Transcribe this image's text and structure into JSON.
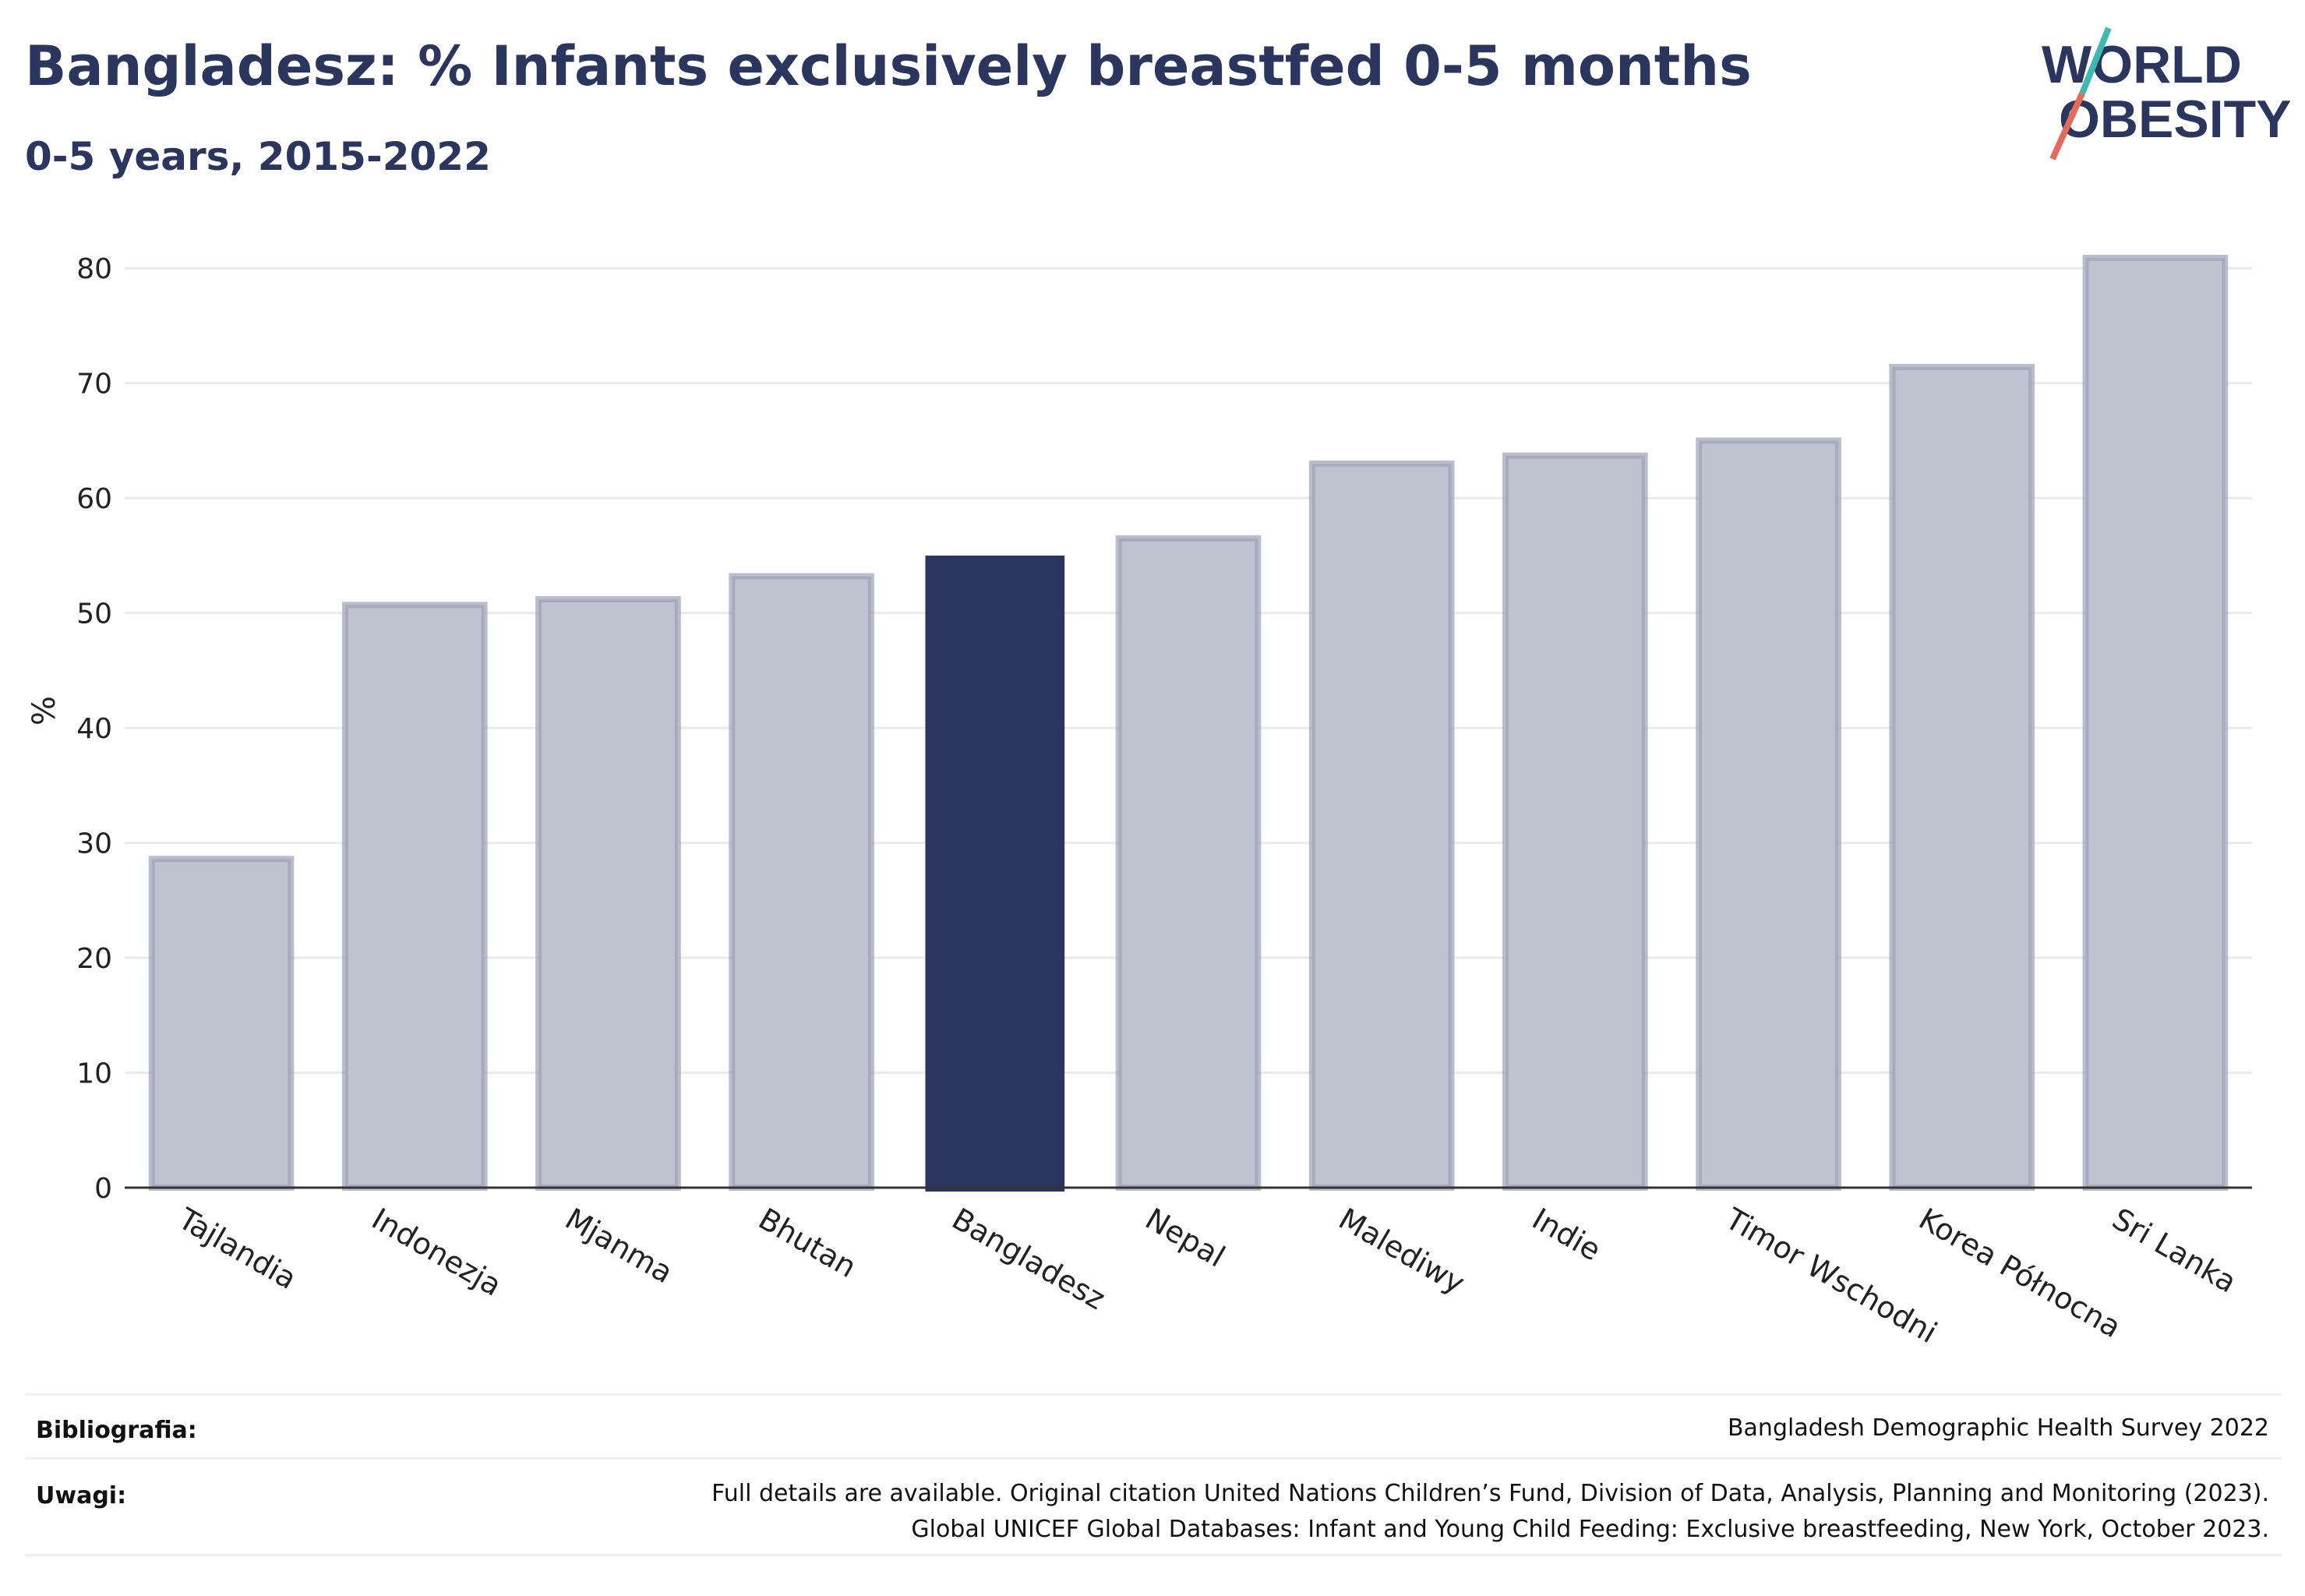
{
  "header": {
    "title": "Bangladesz: % Infants exclusively breastfed 0-5 months",
    "subtitle": "0-5 years, 2015-2022"
  },
  "logo": {
    "line1": "WORLD",
    "line2": "OBESITY",
    "accent_colors": [
      "#3fb8b3",
      "#e46a5a"
    ]
  },
  "chart_data": {
    "type": "bar",
    "categories": [
      "Tajlandia",
      "Indonezja",
      "Mjanma",
      "Bhutan",
      "Bangladesz",
      "Nepal",
      "Malediwy",
      "Indie",
      "Timor Wschodni",
      "Korea Północna",
      "Sri Lanka"
    ],
    "values": [
      28.6,
      50.7,
      51.2,
      53.2,
      55.0,
      56.5,
      63.0,
      63.7,
      65.0,
      71.4,
      80.9
    ],
    "highlight": "Bangladesz",
    "ylabel": "%",
    "ylim": [
      0,
      83
    ],
    "yticks": [
      0,
      10,
      20,
      30,
      40,
      50,
      60,
      70,
      80
    ],
    "grid": true,
    "colors": {
      "bar": "#bfc2cf",
      "bar_stroke": "#9da1b5",
      "highlight": "#2b365e",
      "grid": "#e8eaf0",
      "axis": "#333333"
    }
  },
  "footer": {
    "bibliography_label": "Bibliografia:",
    "bibliography_text": "Bangladesh Demographic Health Survey 2022",
    "notes_label": "Uwagi:",
    "notes_line1": "Full details are available. Original citation United Nations Children’s Fund, Division of Data, Analysis, Planning and Monitoring (2023).",
    "notes_line2": "Global UNICEF Global Databases: Infant and Young Child Feeding: Exclusive breastfeeding, New York, October 2023."
  }
}
